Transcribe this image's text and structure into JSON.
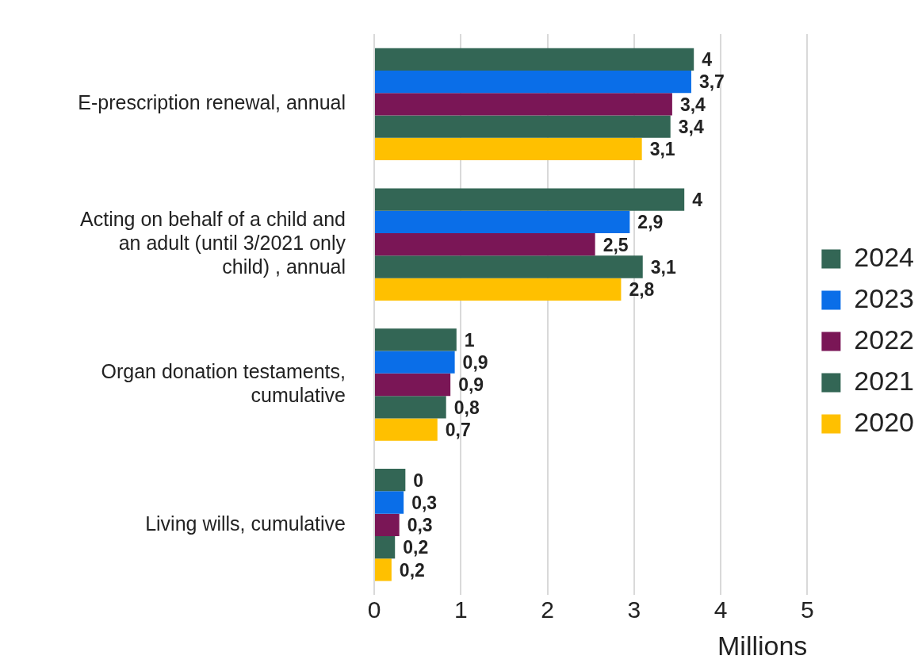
{
  "chart_data": {
    "type": "bar",
    "orientation": "horizontal",
    "xlabel": "Millions",
    "categories": [
      "E-prescription renewal, annual",
      "Acting on behalf of a child and an adult (until 3/2021 only child) , annual",
      "Organ donation testaments, cumulative",
      "Living wills, cumulative"
    ],
    "series": [
      {
        "name": "2024",
        "color": "#336655",
        "values": [
          3.69,
          3.58,
          0.95,
          0.36
        ],
        "value_labels": [
          "4",
          "4",
          "1",
          "0"
        ]
      },
      {
        "name": "2023",
        "color": "#0a6ee8",
        "values": [
          3.66,
          2.95,
          0.93,
          0.34
        ],
        "value_labels": [
          "3,7",
          "2,9",
          "0,9",
          "0,3"
        ]
      },
      {
        "name": "2022",
        "color": "#7a1656",
        "values": [
          3.44,
          2.55,
          0.88,
          0.29
        ],
        "value_labels": [
          "3,4",
          "2,5",
          "0,9",
          "0,3"
        ]
      },
      {
        "name": "2021",
        "color": "#336655",
        "values": [
          3.42,
          3.1,
          0.83,
          0.24
        ],
        "value_labels": [
          "3,4",
          "3,1",
          "0,8",
          "0,2"
        ]
      },
      {
        "name": "2020",
        "color": "#ffc000",
        "values": [
          3.09,
          2.85,
          0.73,
          0.2
        ],
        "value_labels": [
          "3,1",
          "2,8",
          "0,7",
          "0,2"
        ]
      }
    ],
    "xlim": [
      0,
      5
    ],
    "xticks": [
      0,
      1,
      2,
      3,
      4,
      5
    ],
    "grid": "x",
    "legend": "right"
  }
}
